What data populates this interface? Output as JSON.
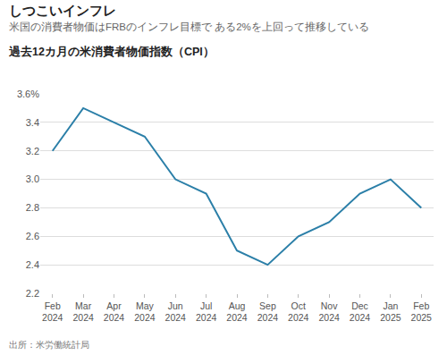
{
  "chart_data": {
    "type": "line",
    "title": "しつこいインフレ",
    "subtitle": "米国の消費者物価はFRBのインフレ目標で ある2%を上回って推移している",
    "y_label": "過去12カ月の米消費者物価指数（CPI）",
    "source": "出所：米労働統計局",
    "categories": [
      "Feb 2024",
      "Mar 2024",
      "Apr 2024",
      "May 2024",
      "Jun 2024",
      "Jul 2024",
      "Aug 2024",
      "Sep 2024",
      "Oct 2024",
      "Nov 2024",
      "Dec 2024",
      "Jan 2025",
      "Feb 2025"
    ],
    "values": [
      3.2,
      3.5,
      3.4,
      3.3,
      3.0,
      2.9,
      2.5,
      2.4,
      2.6,
      2.7,
      2.9,
      3.0,
      2.8
    ],
    "color": "#2b7fa8",
    "ylim": [
      2.2,
      3.6
    ],
    "yticks": [
      2.2,
      2.4,
      2.6,
      2.8,
      {
        "value": 3,
        "label": "3.0"
      },
      3.2,
      3.4,
      {
        "value": 3.6,
        "label": "3.6%"
      }
    ],
    "grid": true
  }
}
